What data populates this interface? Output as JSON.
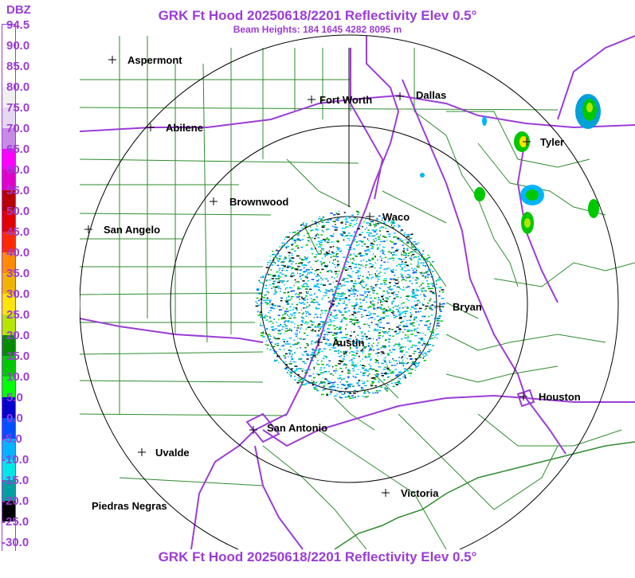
{
  "title": "GRK Ft Hood 20250618/2201 Reflectivity Elev 0.5°",
  "beam_heights": "Beam Heights: 184 1645 4282 8095 m",
  "legend": {
    "title": "DBZ",
    "labels": [
      "94.5",
      "90.0",
      "85.0",
      "80.0",
      "75.0",
      "70.0",
      "65.0",
      "60.0",
      "55.0",
      "50.0",
      "45.0",
      "40.0",
      "35.0",
      "30.0",
      "25.0",
      "20.0",
      "15.0",
      "10.0",
      "5.0",
      "0.0",
      "-5.0",
      "-10.0",
      "-15.0",
      "-20.0",
      "-25.0",
      "-30.0"
    ],
    "colors": [
      "#ffffff",
      "#ffffff",
      "#ffffff",
      "#f0f0f0",
      "#e6d8f2",
      "#c88ae6",
      "#ff00ff",
      "#e000c8",
      "#b80000",
      "#e00000",
      "#ff2a00",
      "#ff8c00",
      "#f0b400",
      "#ffe600",
      "#b4e600",
      "#008c00",
      "#00c800",
      "#00ff00",
      "#0000c8",
      "#0050ff",
      "#00b4ff",
      "#00e6e6",
      "#00a0a0",
      "#000000",
      "#ffffff",
      "#ffffff"
    ]
  },
  "cities": [
    {
      "name": "Aspermont"
    },
    {
      "name": "Fort Worth"
    },
    {
      "name": "Dallas"
    },
    {
      "name": "Abilene"
    },
    {
      "name": "Tyler"
    },
    {
      "name": "Brownwood"
    },
    {
      "name": "Waco"
    },
    {
      "name": "San Angelo"
    },
    {
      "name": "Bryan"
    },
    {
      "name": "Austin"
    },
    {
      "name": "Houston"
    },
    {
      "name": "San Antonio"
    },
    {
      "name": "Uvalde"
    },
    {
      "name": "Victoria"
    },
    {
      "name": "Piedras Negras"
    }
  ],
  "colors": {
    "title": "#9b3dd6",
    "county_lines": "#2e8b2e",
    "highways": "#9b3dd6",
    "range_rings": "#000000"
  }
}
